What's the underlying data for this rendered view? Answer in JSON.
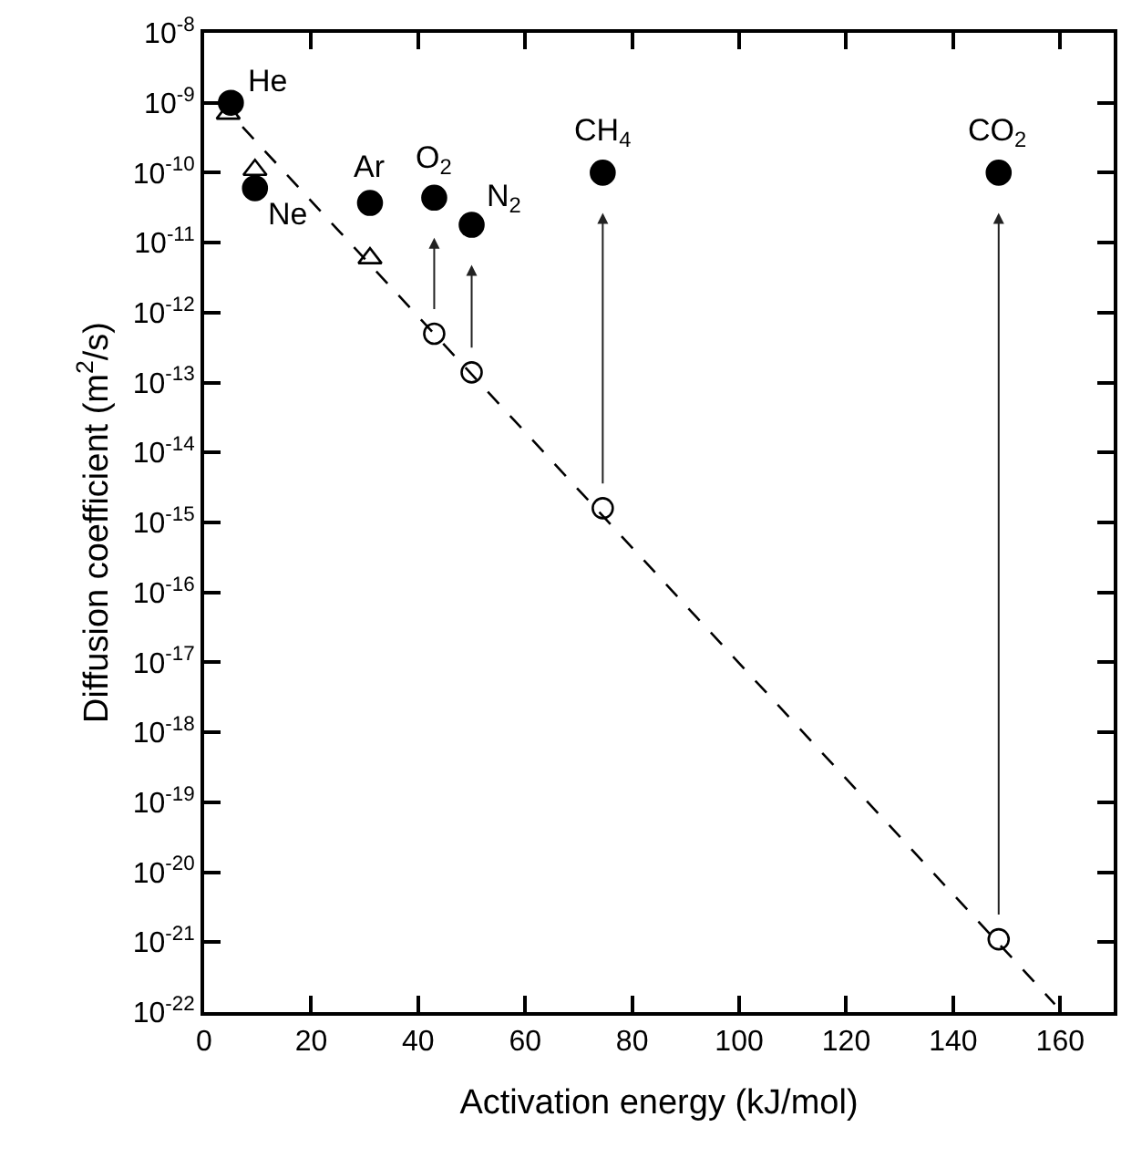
{
  "chart_data": {
    "type": "scatter",
    "xlabel": "Activation energy (kJ/mol)",
    "ylabel": "Diffusion coefficient (m$^{2}$/s)",
    "log": "y",
    "grid": false,
    "xlim": [
      0,
      170
    ],
    "xticks": [
      0,
      20,
      40,
      60,
      80,
      100,
      120,
      140,
      160
    ],
    "ylim": [
      1e-22,
      1e-08
    ],
    "yticks": [
      {
        "value": 1e-08,
        "label": "10$^{-8}$"
      },
      {
        "value": 1e-09,
        "label": "10$^{-9}$"
      },
      {
        "value": 1e-10,
        "label": "10$^{-10}$"
      },
      {
        "value": 1e-11,
        "label": "10$^{-11}$"
      },
      {
        "value": 1e-12,
        "label": "10$^{-12}$"
      },
      {
        "value": 1e-13,
        "label": "10$^{-13}$"
      },
      {
        "value": 1e-14,
        "label": "10$^{-14}$"
      },
      {
        "value": 1e-15,
        "label": "10$^{-15}$"
      },
      {
        "value": 1e-16,
        "label": "10$^{-16}$"
      },
      {
        "value": 1e-17,
        "label": "10$^{-17}$"
      },
      {
        "value": 1e-18,
        "label": "10$^{-18}$"
      },
      {
        "value": 1e-19,
        "label": "10$^{-19}$"
      },
      {
        "value": 1e-20,
        "label": "10$^{-20}$"
      },
      {
        "value": 1e-21,
        "label": "10$^{-21}$"
      },
      {
        "value": 1e-22,
        "label": "10$^{-22}$"
      }
    ],
    "series": [
      {
        "type": "line",
        "color": "#000000",
        "line_style": "dashed",
        "marker": "none",
        "x": [
          3,
          159
        ],
        "values": [
          1e-09,
          1.3e-22
        ]
      },
      {
        "color": "#000000",
        "marker": "circle",
        "x": [
          5,
          9.5,
          31,
          43,
          50,
          74.5,
          148.5
        ],
        "values": [
          1e-09,
          6e-11,
          3.7e-11,
          4.4e-11,
          1.8e-11,
          1e-10,
          1e-10
        ]
      },
      {
        "color": "#000000",
        "marker": "triangle",
        "x": [
          4.5,
          9.5,
          31
        ],
        "values": [
          7e-10,
          1.1e-10,
          6e-12
        ]
      },
      {
        "color": "#000000",
        "marker": "circle",
        "x": [
          43,
          50,
          74.5,
          148.5
        ],
        "values": [
          5e-13,
          1.4e-13,
          1.6e-15,
          1.1e-21
        ]
      }
    ],
    "annotations": [
      {
        "text": "He",
        "x": 5,
        "y": 1e-09
      },
      {
        "text": "Ne",
        "x": 9.5,
        "y": 6e-11
      },
      {
        "text": "Ar",
        "x": 31,
        "y": 3.7e-11
      },
      {
        "text": "O$_{2}$",
        "x": 43,
        "y": 4.4e-11
      },
      {
        "text": "N$_{2}$",
        "x": 50,
        "y": 1.8e-11
      },
      {
        "text": "CH$_{4}$",
        "x": 74.5,
        "y": 1e-10
      },
      {
        "text": "CO$_{2}$",
        "x": 148.5,
        "y": 1e-10
      }
    ]
  }
}
